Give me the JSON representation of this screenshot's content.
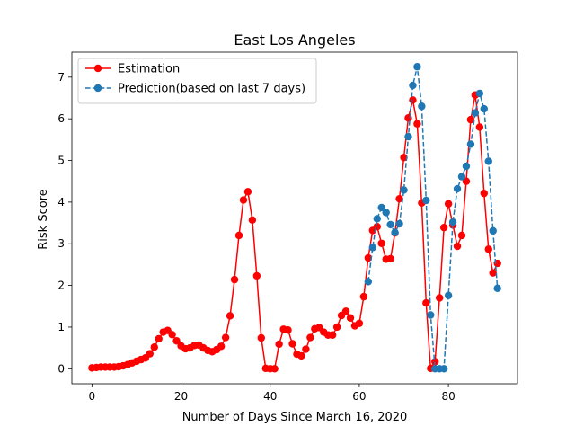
{
  "chart_data": {
    "type": "line",
    "title": "East Los Angeles",
    "xlabel": "Number of Days Since March 16, 2020",
    "ylabel": "Risk Score",
    "xlim": [
      -4.5,
      95.5
    ],
    "ylim": [
      -0.36,
      7.6
    ],
    "xticks": [
      0,
      20,
      40,
      60,
      80
    ],
    "yticks": [
      0,
      1,
      2,
      3,
      4,
      5,
      6,
      7
    ],
    "grid": false,
    "legend": "top-left",
    "series": [
      {
        "name": "Estimation",
        "color": "#ff0000",
        "style": "solid",
        "marker": "circle",
        "x": [
          0,
          1,
          2,
          3,
          4,
          5,
          6,
          7,
          8,
          9,
          10,
          11,
          12,
          13,
          14,
          15,
          16,
          17,
          18,
          19,
          20,
          21,
          22,
          23,
          24,
          25,
          26,
          27,
          28,
          29,
          30,
          31,
          32,
          33,
          34,
          35,
          36,
          37,
          38,
          39,
          40,
          41,
          42,
          43,
          44,
          45,
          46,
          47,
          48,
          49,
          50,
          51,
          52,
          53,
          54,
          55,
          56,
          57,
          58,
          59,
          60,
          61,
          62,
          63,
          64,
          65,
          66,
          67,
          68,
          69,
          70,
          71,
          72,
          73,
          74,
          75,
          76,
          77,
          78,
          79,
          80,
          81,
          82,
          83,
          84,
          85,
          86,
          87,
          88,
          89,
          90,
          91
        ],
        "y": [
          0.02,
          0.03,
          0.04,
          0.04,
          0.04,
          0.04,
          0.05,
          0.07,
          0.1,
          0.14,
          0.18,
          0.22,
          0.26,
          0.36,
          0.52,
          0.72,
          0.88,
          0.92,
          0.82,
          0.67,
          0.55,
          0.48,
          0.5,
          0.56,
          0.57,
          0.5,
          0.44,
          0.41,
          0.46,
          0.54,
          0.75,
          1.27,
          2.14,
          3.2,
          4.05,
          4.25,
          3.57,
          2.23,
          0.74,
          0.01,
          0.0,
          0.0,
          0.59,
          0.95,
          0.93,
          0.6,
          0.35,
          0.31,
          0.47,
          0.75,
          0.96,
          0.99,
          0.88,
          0.81,
          0.81,
          1.0,
          1.28,
          1.38,
          1.22,
          1.03,
          1.09,
          1.73,
          2.66,
          3.32,
          3.41,
          3.01,
          2.63,
          2.64,
          3.26,
          4.08,
          5.07,
          6.02,
          6.45,
          5.88,
          3.98,
          1.58,
          0.01,
          0.17,
          1.7,
          3.39,
          3.96,
          3.45,
          2.94,
          3.2,
          4.5,
          5.98,
          6.57,
          5.8,
          4.21,
          2.87,
          2.3,
          2.53
        ]
      },
      {
        "name": "Prediction(based on last 7 days)",
        "color": "#1f77b4",
        "style": "dashed",
        "marker": "circle",
        "x": [
          62,
          63,
          64,
          65,
          66,
          67,
          68,
          69,
          70,
          71,
          72,
          73,
          74,
          75,
          76,
          77,
          78,
          79,
          80,
          81,
          82,
          83,
          84,
          85,
          86,
          87,
          88,
          89,
          90,
          91
        ],
        "y": [
          2.09,
          2.91,
          3.6,
          3.87,
          3.75,
          3.46,
          3.27,
          3.48,
          4.29,
          5.57,
          6.8,
          7.25,
          6.3,
          4.04,
          1.29,
          0.0,
          0.0,
          0.0,
          1.76,
          3.52,
          4.32,
          4.61,
          4.86,
          5.39,
          6.14,
          6.61,
          6.24,
          4.98,
          3.31,
          1.93
        ]
      }
    ]
  }
}
